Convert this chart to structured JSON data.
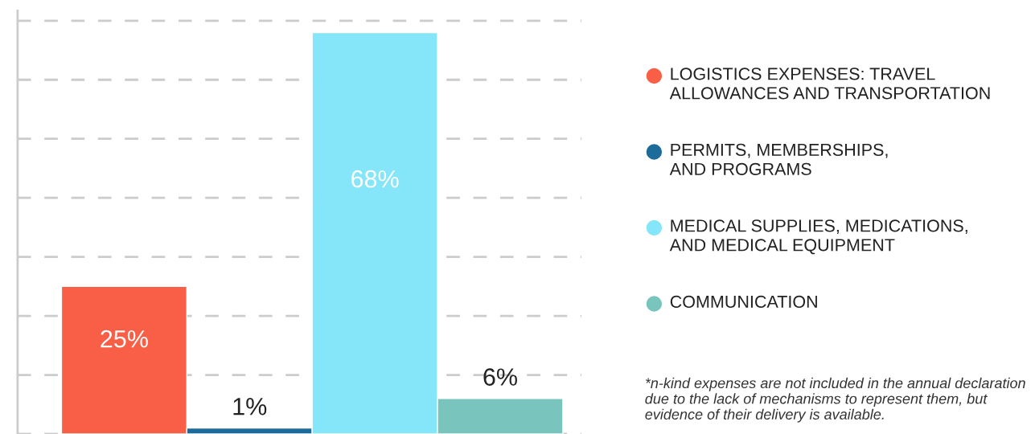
{
  "chart_data": {
    "type": "bar",
    "categories": [
      null,
      null,
      null,
      null
    ],
    "values": [
      25,
      1,
      68,
      6
    ],
    "value_labels": [
      "25%",
      "1%",
      "68%",
      "6%"
    ],
    "colors": [
      "#f95f47",
      "#1d6b9a",
      "#86e6f9",
      "#79c4bc"
    ],
    "grid": "y",
    "tick_labels": false,
    "annotations": [
      "LOGISTICS EXPENSES: TRAVEL\nALLOWANCES AND TRANSPORTATION",
      "PERMITS, MEMBERSHIPS,\nAND PROGRAMS",
      "MEDICAL SUPPLIES, MEDICATIONS,\nAND MEDICAL EQUIPMENT",
      "COMMUNICATION",
      "*n-kind expenses are not included in the annual declaration due to the lack of mechanisms to represent them, but evidence of their delivery is available."
    ]
  }
}
